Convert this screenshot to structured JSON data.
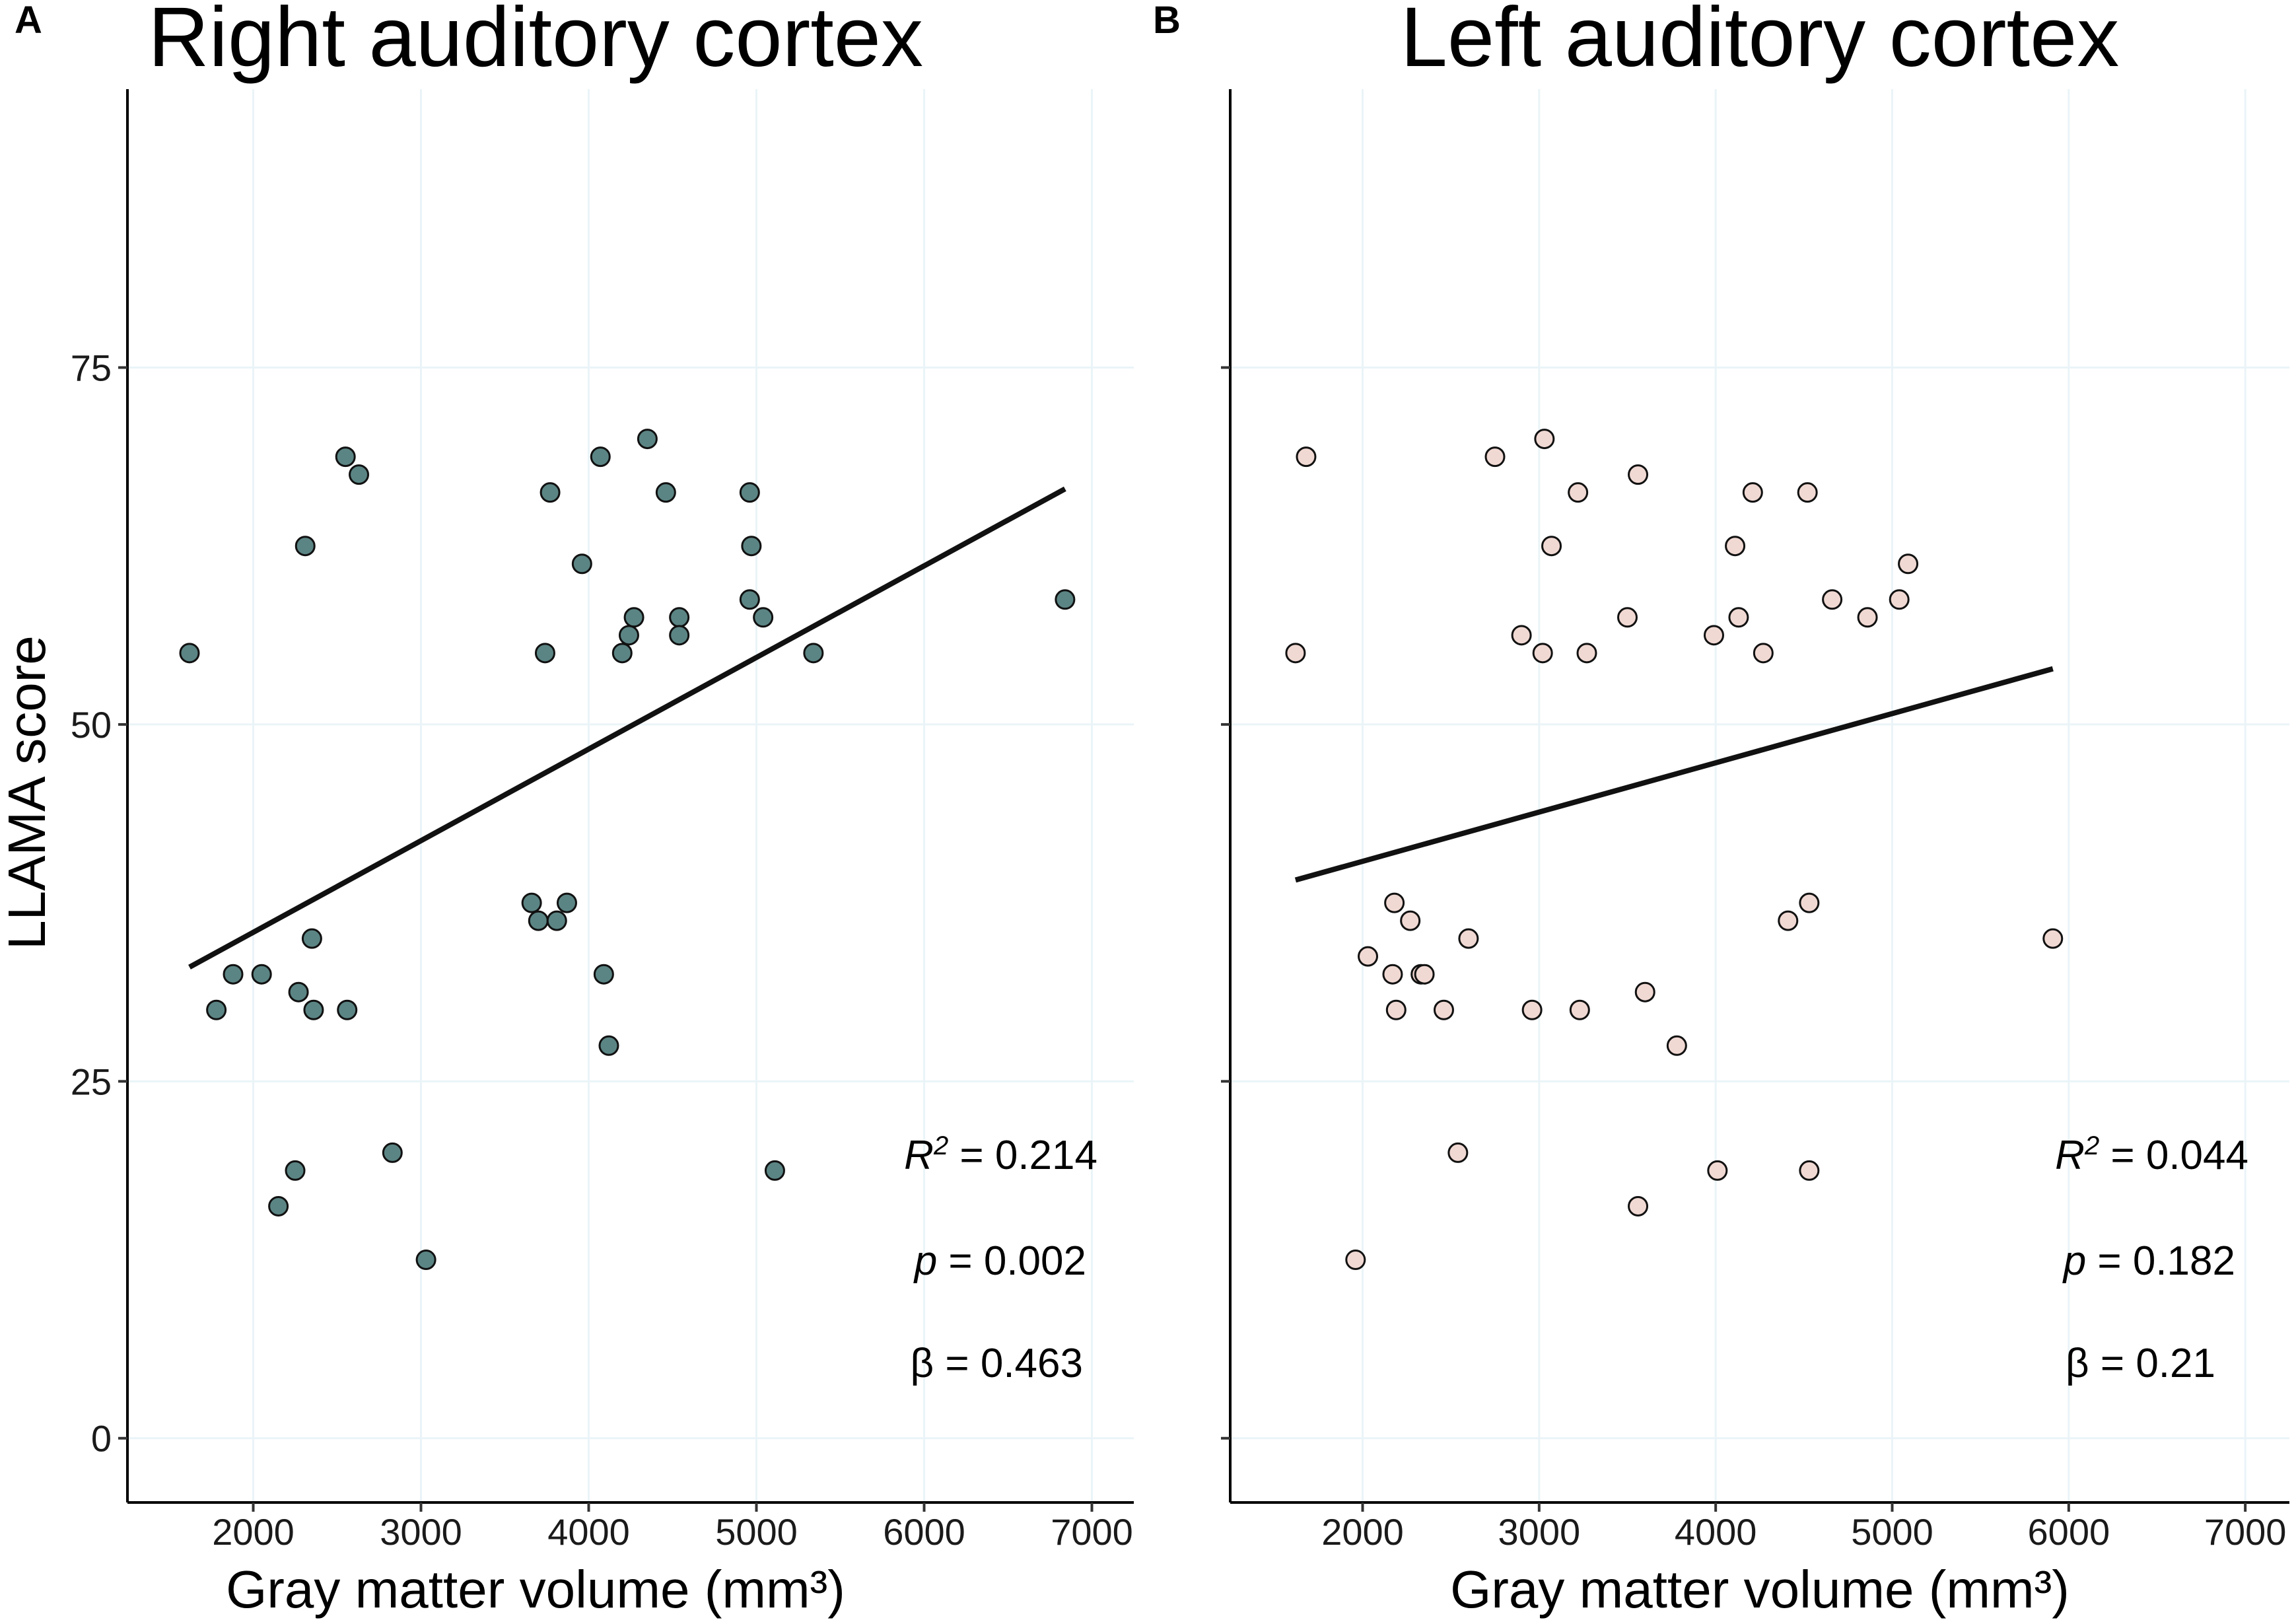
{
  "chart_data": [
    {
      "panel": "A",
      "type": "scatter",
      "title": "Right auditory cortex",
      "xlabel": "Gray matter volume (mm³)",
      "ylabel": "LLAMA score",
      "xlim": [
        1250,
        7250
      ],
      "ylim": [
        -4.5,
        94.5
      ],
      "xticks": [
        2000,
        3000,
        4000,
        5000,
        6000,
        7000
      ],
      "yticks": [
        0,
        25,
        50,
        75
      ],
      "grid": true,
      "point_color": "#5b8584",
      "points": [
        {
          "x": 1620,
          "y": 55
        },
        {
          "x": 1780,
          "y": 30
        },
        {
          "x": 1880,
          "y": 32.5
        },
        {
          "x": 2050,
          "y": 32.5
        },
        {
          "x": 2150,
          "y": 16.25
        },
        {
          "x": 2250,
          "y": 18.75
        },
        {
          "x": 2270,
          "y": 31.25
        },
        {
          "x": 2310,
          "y": 62.5
        },
        {
          "x": 2350,
          "y": 35
        },
        {
          "x": 2360,
          "y": 30
        },
        {
          "x": 2550,
          "y": 68.75
        },
        {
          "x": 2560,
          "y": 30
        },
        {
          "x": 2630,
          "y": 67.5
        },
        {
          "x": 2830,
          "y": 20
        },
        {
          "x": 3030,
          "y": 12.5
        },
        {
          "x": 3660,
          "y": 37.5
        },
        {
          "x": 3700,
          "y": 36.25
        },
        {
          "x": 3740,
          "y": 55
        },
        {
          "x": 3770,
          "y": 66.25
        },
        {
          "x": 3810,
          "y": 36.25
        },
        {
          "x": 3870,
          "y": 37.5
        },
        {
          "x": 3960,
          "y": 61.25
        },
        {
          "x": 4070,
          "y": 68.75
        },
        {
          "x": 4090,
          "y": 32.5
        },
        {
          "x": 4120,
          "y": 27.5
        },
        {
          "x": 4200,
          "y": 55
        },
        {
          "x": 4240,
          "y": 56.25
        },
        {
          "x": 4270,
          "y": 57.5
        },
        {
          "x": 4350,
          "y": 70
        },
        {
          "x": 4460,
          "y": 66.25
        },
        {
          "x": 4540,
          "y": 57.5
        },
        {
          "x": 4540,
          "y": 56.25
        },
        {
          "x": 4960,
          "y": 66.25
        },
        {
          "x": 4970,
          "y": 62.5
        },
        {
          "x": 4960,
          "y": 58.75
        },
        {
          "x": 5040,
          "y": 57.5
        },
        {
          "x": 5110,
          "y": 18.75
        },
        {
          "x": 5340,
          "y": 55
        },
        {
          "x": 6840,
          "y": 58.75
        }
      ],
      "fit_line": {
        "x": [
          1620,
          6840
        ],
        "y": [
          33,
          66.5
        ]
      },
      "stats": {
        "r2_label": "R",
        "r2_sup": "2",
        "r2_value": " = 0.214",
        "p_label": "p",
        "p_value": " = 0.002",
        "beta_label": "β = 0.463"
      }
    },
    {
      "panel": "B",
      "type": "scatter",
      "title": "Left auditory cortex",
      "xlabel": "Gray matter volume (mm³)",
      "ylabel": "",
      "xlim": [
        1250,
        7250
      ],
      "ylim": [
        -4.5,
        94.5
      ],
      "xticks": [
        2000,
        3000,
        4000,
        5000,
        6000,
        7000
      ],
      "yticks": [
        0,
        25,
        50,
        75
      ],
      "grid": true,
      "point_color": "#f1d9d3",
      "points": [
        {
          "x": 1620,
          "y": 55
        },
        {
          "x": 1680,
          "y": 68.75
        },
        {
          "x": 1960,
          "y": 12.5
        },
        {
          "x": 2030,
          "y": 33.75
        },
        {
          "x": 2170,
          "y": 32.5
        },
        {
          "x": 2180,
          "y": 37.5
        },
        {
          "x": 2190,
          "y": 30
        },
        {
          "x": 2270,
          "y": 36.25
        },
        {
          "x": 2330,
          "y": 32.5
        },
        {
          "x": 2350,
          "y": 32.5
        },
        {
          "x": 2460,
          "y": 30
        },
        {
          "x": 2540,
          "y": 20
        },
        {
          "x": 2600,
          "y": 35
        },
        {
          "x": 2750,
          "y": 68.75
        },
        {
          "x": 2900,
          "y": 56.25
        },
        {
          "x": 2960,
          "y": 30
        },
        {
          "x": 3020,
          "y": 55
        },
        {
          "x": 3030,
          "y": 70
        },
        {
          "x": 3070,
          "y": 62.5
        },
        {
          "x": 3220,
          "y": 66.25
        },
        {
          "x": 3230,
          "y": 30
        },
        {
          "x": 3270,
          "y": 55
        },
        {
          "x": 3500,
          "y": 57.5
        },
        {
          "x": 3560,
          "y": 67.5
        },
        {
          "x": 3560,
          "y": 16.25
        },
        {
          "x": 3600,
          "y": 31.25
        },
        {
          "x": 3780,
          "y": 27.5
        },
        {
          "x": 3990,
          "y": 56.25
        },
        {
          "x": 4010,
          "y": 18.75
        },
        {
          "x": 4110,
          "y": 62.5
        },
        {
          "x": 4130,
          "y": 57.5
        },
        {
          "x": 4210,
          "y": 66.25
        },
        {
          "x": 4270,
          "y": 55
        },
        {
          "x": 4410,
          "y": 36.25
        },
        {
          "x": 4520,
          "y": 66.25
        },
        {
          "x": 4530,
          "y": 37.5
        },
        {
          "x": 4530,
          "y": 18.75
        },
        {
          "x": 4660,
          "y": 58.75
        },
        {
          "x": 4860,
          "y": 57.5
        },
        {
          "x": 5040,
          "y": 58.75
        },
        {
          "x": 5090,
          "y": 61.25
        },
        {
          "x": 5910,
          "y": 35
        }
      ],
      "fit_line": {
        "x": [
          1620,
          5910
        ],
        "y": [
          39.1,
          53.9
        ]
      },
      "stats": {
        "r2_label": "R",
        "r2_sup": "2",
        "r2_value": " = 0.044",
        "p_label": "p",
        "p_value": " = 0.182",
        "beta_label": "β = 0.21"
      }
    }
  ]
}
